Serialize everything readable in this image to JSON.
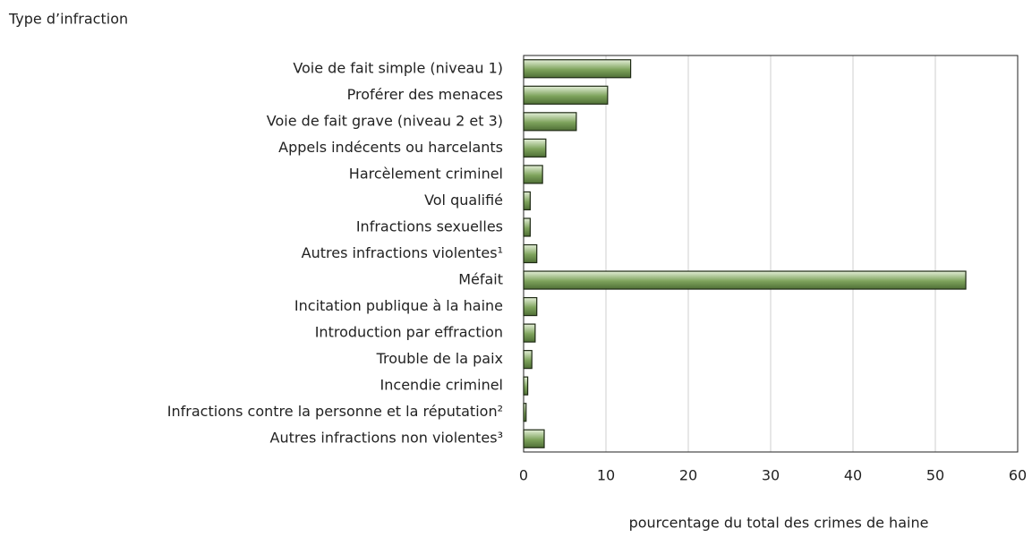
{
  "chart_data": {
    "type": "barh",
    "y_axis_label": "Type d’infraction",
    "x_axis_label": "pourcentage du total des crimes de haine",
    "categories": [
      "Voie de fait simple (niveau 1)",
      "Proférer des menaces",
      "Voie de fait grave (niveau 2 et 3)",
      "Appels indécents ou harcelants",
      "Harcèlement criminel",
      "Vol qualifié",
      "Infractions sexuelles",
      "Autres infractions violentes¹",
      "Méfait",
      "Incitation publique à la haine",
      "Introduction par effraction",
      "Trouble de la paix",
      "Incendie criminel",
      "Infractions contre la personne et la réputation²",
      "Autres infractions non violentes³"
    ],
    "values": [
      13.0,
      10.2,
      6.4,
      2.7,
      2.3,
      0.8,
      0.8,
      1.6,
      53.7,
      1.6,
      1.4,
      1.0,
      0.5,
      0.3,
      2.5
    ],
    "color": "#7ea35c",
    "xlim": [
      0,
      60
    ],
    "xticks": [
      0,
      10,
      20,
      30,
      40,
      50,
      60
    ],
    "grid": true
  }
}
